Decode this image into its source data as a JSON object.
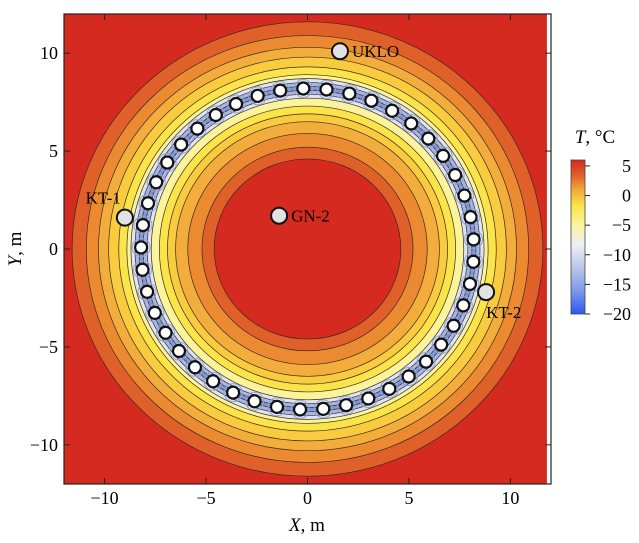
{
  "chart_data": {
    "type": "heatmap",
    "xlabel_var": "X",
    "xlabel_unit": ", m",
    "ylabel_var": "Y",
    "ylabel_unit": ", m",
    "xlim": [
      -12,
      12
    ],
    "ylim": [
      -12,
      12
    ],
    "xticks": [
      -10,
      -5,
      0,
      5,
      10
    ],
    "yticks": [
      -10,
      -5,
      0,
      5,
      10
    ],
    "xtick_labels": [
      "−10",
      "−5",
      "0",
      "5",
      "10"
    ],
    "ytick_labels": [
      "−10",
      "−5",
      "0",
      "5",
      "10"
    ],
    "colorbar": {
      "title_var": "T",
      "title_unit": ", °C",
      "range": [
        -20,
        6
      ],
      "ticks": [
        5,
        0,
        -5,
        -10,
        -15,
        -20
      ],
      "tick_labels": [
        "5",
        "0",
        "−5",
        "−10",
        "−15",
        "−20"
      ]
    },
    "colors": {
      "hot": "#d42a1f",
      "orange_dark": "#e0602a",
      "orange": "#ec8a32",
      "amber": "#f3ad3c",
      "yellow_dark": "#f8cc3e",
      "yellow": "#fbe44a",
      "yellow_pale": "#fcf49a",
      "cold_light": "#dfe4f2",
      "cold_mid": "#a9b8e2",
      "cold": "#2a58f0"
    },
    "freezing_ring": {
      "center": [
        0,
        0
      ],
      "radius": 8.2,
      "pipe_count": 45
    },
    "wells": [
      {
        "name": "UKLO",
        "x": 1.6,
        "y": 10.1
      },
      {
        "name": "GN-2",
        "x": -1.4,
        "y": 1.7
      },
      {
        "name": "KT-1",
        "x": -9.0,
        "y": 1.6
      },
      {
        "name": "KT-2",
        "x": 8.8,
        "y": -2.2
      }
    ]
  }
}
